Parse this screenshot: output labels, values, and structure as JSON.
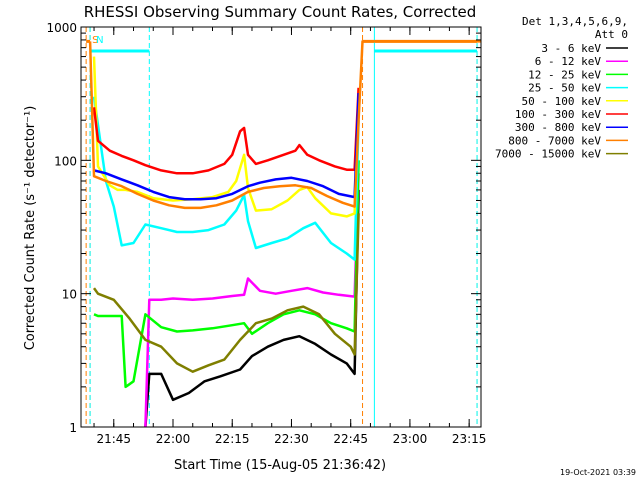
{
  "chart_data": {
    "type": "line",
    "title": "RHESSI Observing Summary Count Rates, Corrected",
    "xlabel": "Start Time (15-Aug-05 21:36:42)",
    "ylabel": "Corrected Count Rate (s⁻¹ detector⁻¹)",
    "x_scale": "time",
    "y_scale": "log",
    "xlim": [
      "21:36:42",
      "23:18:00"
    ],
    "ylim": [
      1,
      1000
    ],
    "x_ticks": [
      "21:45",
      "22:00",
      "22:15",
      "22:30",
      "22:45",
      "23:00",
      "23:15"
    ],
    "y_ticks": [
      1,
      10,
      100,
      1000
    ],
    "y_tick_labels": [
      "1",
      "10",
      "100",
      "1000"
    ],
    "legend_header": [
      "Det 1,3,4,5,6,9,",
      "Att 0"
    ],
    "legend_position": "right",
    "footer_timestamp": "19-Oct-2021 03:39",
    "series": [
      {
        "name": "3 - 6 keV",
        "color": "#000000",
        "x": [
          "21:53",
          "21:54",
          "21:57",
          "22:00",
          "22:04",
          "22:08",
          "22:12",
          "22:17",
          "22:20",
          "22:24",
          "22:28",
          "22:32",
          "22:36",
          "22:40",
          "22:44",
          "22:46",
          "22:47"
        ],
        "y": [
          1.0,
          2.5,
          2.5,
          1.6,
          1.8,
          2.2,
          2.4,
          2.7,
          3.4,
          4.0,
          4.5,
          4.8,
          4.2,
          3.5,
          3.0,
          2.5,
          60
        ]
      },
      {
        "name": "6 - 12 keV",
        "color": "#ff00ff",
        "x": [
          "21:53",
          "21:54",
          "21:57",
          "22:00",
          "22:05",
          "22:10",
          "22:15",
          "22:18",
          "22:19",
          "22:22",
          "22:26",
          "22:30",
          "22:34",
          "22:38",
          "22:42",
          "22:46",
          "22:47"
        ],
        "y": [
          1.0,
          9.0,
          9.0,
          9.2,
          9.0,
          9.2,
          9.6,
          9.8,
          13.0,
          10.5,
          10.0,
          10.5,
          11.0,
          10.2,
          9.8,
          9.5,
          80
        ]
      },
      {
        "name": "12 - 25 keV",
        "color": "#00ff00",
        "x": [
          "21:40",
          "21:41",
          "21:47",
          "21:48",
          "21:50",
          "21:53",
          "21:57",
          "22:01",
          "22:05",
          "22:10",
          "22:15",
          "22:18",
          "22:20",
          "22:24",
          "22:28",
          "22:32",
          "22:36",
          "22:40",
          "22:44",
          "22:46",
          "22:47"
        ],
        "y": [
          7.0,
          6.8,
          6.8,
          2.0,
          2.2,
          7.0,
          5.6,
          5.2,
          5.3,
          5.5,
          5.8,
          6.0,
          5.0,
          6.0,
          7.0,
          7.5,
          7.0,
          6.0,
          5.5,
          5.2,
          100
        ]
      },
      {
        "name": "25 - 50 keV",
        "color": "#00ffff",
        "x": [
          "21:40",
          "21:43",
          "21:45",
          "21:47",
          "21:50",
          "21:53",
          "21:57",
          "22:01",
          "22:05",
          "22:09",
          "22:13",
          "22:16",
          "22:18",
          "22:19",
          "22:21",
          "22:25",
          "22:29",
          "22:33",
          "22:36",
          "22:40",
          "22:44",
          "22:46",
          "22:47"
        ],
        "y": [
          300,
          70,
          45,
          23,
          24,
          33,
          31,
          29,
          29,
          30,
          33,
          42,
          55,
          35,
          22,
          24,
          26,
          31,
          34,
          24,
          20,
          18,
          200
        ]
      },
      {
        "name": "50 - 100 keV",
        "color": "#ffff00",
        "x": [
          "21:40",
          "21:41",
          "21:44",
          "21:46",
          "21:48",
          "21:51",
          "21:55",
          "22:00",
          "22:05",
          "22:10",
          "22:14",
          "22:16",
          "22:18",
          "22:19",
          "22:21",
          "22:25",
          "22:29",
          "22:32",
          "22:34",
          "22:36",
          "22:40",
          "22:44",
          "22:46",
          "22:47"
        ],
        "y": [
          600,
          90,
          65,
          60,
          60,
          58,
          52,
          50,
          51,
          53,
          58,
          70,
          110,
          62,
          42,
          43,
          50,
          60,
          63,
          52,
          40,
          38,
          40,
          300
        ]
      },
      {
        "name": "100 - 300 keV",
        "color": "#ff0000",
        "x": [
          "21:40",
          "21:41",
          "21:44",
          "21:47",
          "21:50",
          "21:53",
          "21:57",
          "22:01",
          "22:05",
          "22:09",
          "22:13",
          "22:15",
          "22:17",
          "22:18",
          "22:19",
          "22:21",
          "22:24",
          "22:28",
          "22:31",
          "22:32",
          "22:34",
          "22:37",
          "22:41",
          "22:44",
          "22:46",
          "22:47"
        ],
        "y": [
          250,
          140,
          118,
          108,
          100,
          92,
          84,
          80,
          80,
          84,
          94,
          110,
          165,
          175,
          110,
          94,
          100,
          110,
          118,
          130,
          110,
          100,
          90,
          85,
          85,
          350
        ]
      },
      {
        "name": "300 - 800 keV",
        "color": "#0000ff",
        "x": [
          "21:40",
          "21:43",
          "21:47",
          "21:51",
          "21:55",
          "21:59",
          "22:03",
          "22:07",
          "22:11",
          "22:15",
          "22:19",
          "22:22",
          "22:26",
          "22:30",
          "22:34",
          "22:38",
          "22:42",
          "22:46",
          "22:47"
        ],
        "y": [
          84,
          80,
          72,
          65,
          58,
          53,
          51,
          51,
          52,
          56,
          64,
          68,
          72,
          74,
          70,
          64,
          56,
          53,
          320
        ]
      },
      {
        "name": "800 - 7000 keV",
        "color": "#ff7f00",
        "x": [
          "21:39",
          "21:40",
          "21:43",
          "21:47",
          "21:51",
          "21:55",
          "21:59",
          "22:03",
          "22:07",
          "22:11",
          "22:15",
          "22:19",
          "22:23",
          "22:27",
          "22:31",
          "22:35",
          "22:39",
          "22:43",
          "22:46",
          "22:47",
          "22:48",
          "23:18"
        ],
        "y": [
          780,
          76,
          70,
          64,
          56,
          50,
          46,
          44,
          44,
          46,
          50,
          58,
          62,
          64,
          65,
          62,
          54,
          48,
          45,
          200,
          780,
          780
        ]
      },
      {
        "name": "7000 - 15000 keV",
        "color": "#7f7f00",
        "x": [
          "21:40",
          "21:41",
          "21:45",
          "21:49",
          "21:53",
          "21:57",
          "22:01",
          "22:05",
          "22:09",
          "22:13",
          "22:17",
          "22:21",
          "22:25",
          "22:29",
          "22:33",
          "22:37",
          "22:41",
          "22:45",
          "22:46",
          "22:47"
        ],
        "y": [
          11.0,
          10.0,
          9.0,
          6.5,
          4.5,
          4.0,
          3.0,
          2.6,
          2.9,
          3.2,
          4.5,
          6.0,
          6.5,
          7.5,
          8.0,
          7.0,
          5.0,
          4.0,
          3.5,
          40
        ]
      }
    ],
    "annotations": [
      {
        "label": "S",
        "color": "#ff7f00",
        "start": "21:38",
        "end": "21:39"
      },
      {
        "label": "N",
        "color": "#00ffff",
        "start": "21:39",
        "end": "21:54"
      },
      {
        "label": "",
        "color": "#ff7f00",
        "start": "22:48",
        "end": "23:17"
      },
      {
        "label": "",
        "color": "#00ffff",
        "start": "22:51",
        "end": "23:17"
      }
    ]
  }
}
